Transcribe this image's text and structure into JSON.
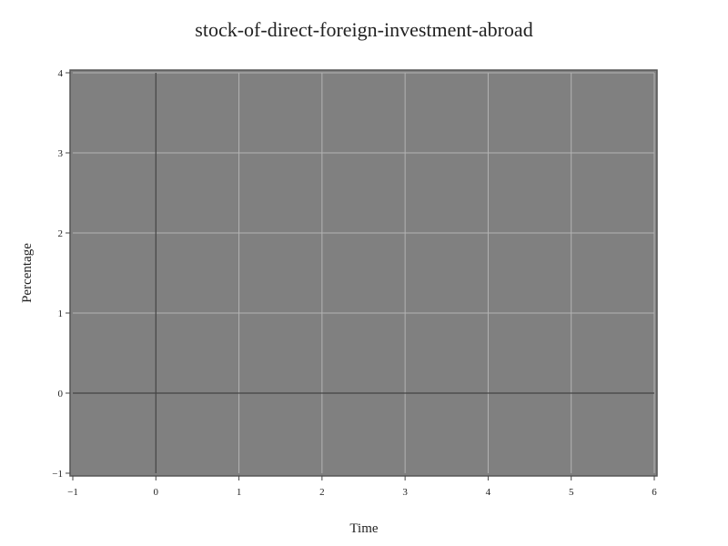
{
  "chart_data": {
    "type": "line",
    "title": "stock-of-direct-foreign-investment-abroad",
    "xlabel": "Time",
    "ylabel": "Percentage",
    "xlim": [
      -1,
      6
    ],
    "ylim": [
      -1,
      4
    ],
    "x_ticks": [
      "−1",
      "0",
      "1",
      "2",
      "3",
      "4",
      "5",
      "6"
    ],
    "y_ticks": [
      "−1",
      "0",
      "1",
      "2",
      "3",
      "4"
    ],
    "grid": true,
    "series": []
  },
  "colors": {
    "plot_background": "#808080",
    "grid": "#b3b3b3",
    "zero_line": "#444444",
    "frame": "#555555"
  }
}
